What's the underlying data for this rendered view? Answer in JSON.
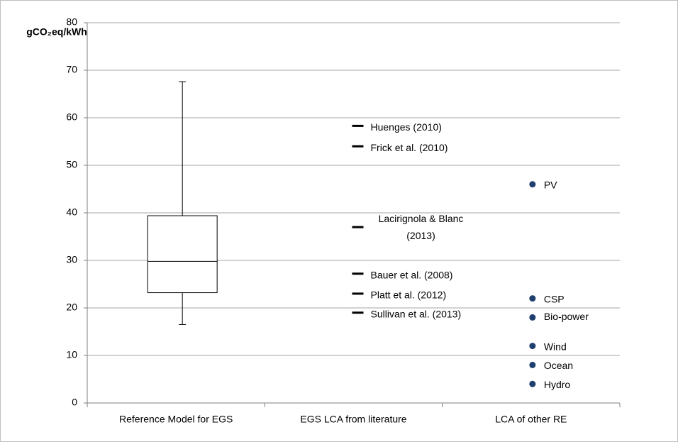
{
  "chart_data": {
    "type": "box",
    "y_label": "gCO₂eq/kWh",
    "categories": [
      "Reference Model for EGS",
      "EGS LCA from literature",
      "LCA of other RE"
    ],
    "ylim": [
      0,
      80
    ],
    "yticks": [
      0,
      10,
      20,
      30,
      40,
      50,
      60,
      70,
      80
    ],
    "grid": true,
    "box": {
      "whislo": 16.5,
      "q1": 23.2,
      "med": 29.8,
      "q3": 39.4,
      "whishi": 67.6
    },
    "literature": {
      "labels": [
        [
          "Huenges (2010)"
        ],
        [
          "Frick et al. (2010)"
        ],
        [
          "Lacirignola & Blanc",
          "(2013)"
        ],
        [
          "Bauer et al. (2008)"
        ],
        [
          "Platt et al. (2012)"
        ],
        [
          "Sullivan et al. (2013)"
        ]
      ],
      "values": [
        58.3,
        54,
        37,
        27.2,
        23,
        19
      ],
      "color": "#000000"
    },
    "other_re": {
      "labels": [
        "PV",
        "CSP",
        "Bio-power",
        "Wind",
        "Ocean",
        "Hydro"
      ],
      "values": [
        46,
        22,
        18,
        12,
        8,
        4
      ],
      "color": "#1f3f6f"
    }
  }
}
